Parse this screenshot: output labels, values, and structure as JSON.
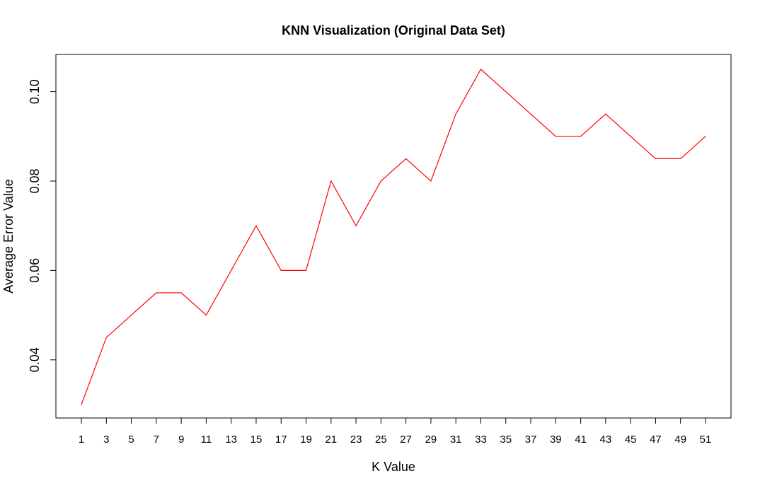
{
  "chart_data": {
    "type": "line",
    "title": "KNN Visualization (Original Data Set)",
    "xlabel": "K Value",
    "ylabel": "Average Error Value",
    "x": [
      1,
      3,
      5,
      7,
      9,
      11,
      13,
      15,
      17,
      19,
      21,
      23,
      25,
      27,
      29,
      31,
      33,
      35,
      37,
      39,
      41,
      43,
      45,
      47,
      49,
      51
    ],
    "series": [
      {
        "color": "#ff0000",
        "values": [
          0.03,
          0.045,
          0.05,
          0.055,
          0.055,
          0.05,
          0.06,
          0.07,
          0.06,
          0.06,
          0.08,
          0.07,
          0.08,
          0.085,
          0.08,
          0.095,
          0.105,
          0.1,
          0.095,
          0.09,
          0.09,
          0.095,
          0.09,
          0.085,
          0.085,
          0.09
        ]
      }
    ],
    "xticks": [
      "1",
      "3",
      "5",
      "7",
      "9",
      "11",
      "13",
      "15",
      "17",
      "19",
      "21",
      "23",
      "25",
      "27",
      "29",
      "31",
      "33",
      "35",
      "37",
      "39",
      "41",
      "43",
      "45",
      "47",
      "49",
      "51"
    ],
    "yticks": [
      "0.04",
      "0.06",
      "0.08",
      "0.10"
    ],
    "xlim": [
      -0.0,
      52.0
    ],
    "ylim": [
      0.027,
      0.108
    ],
    "grid": false,
    "legend": "none"
  }
}
